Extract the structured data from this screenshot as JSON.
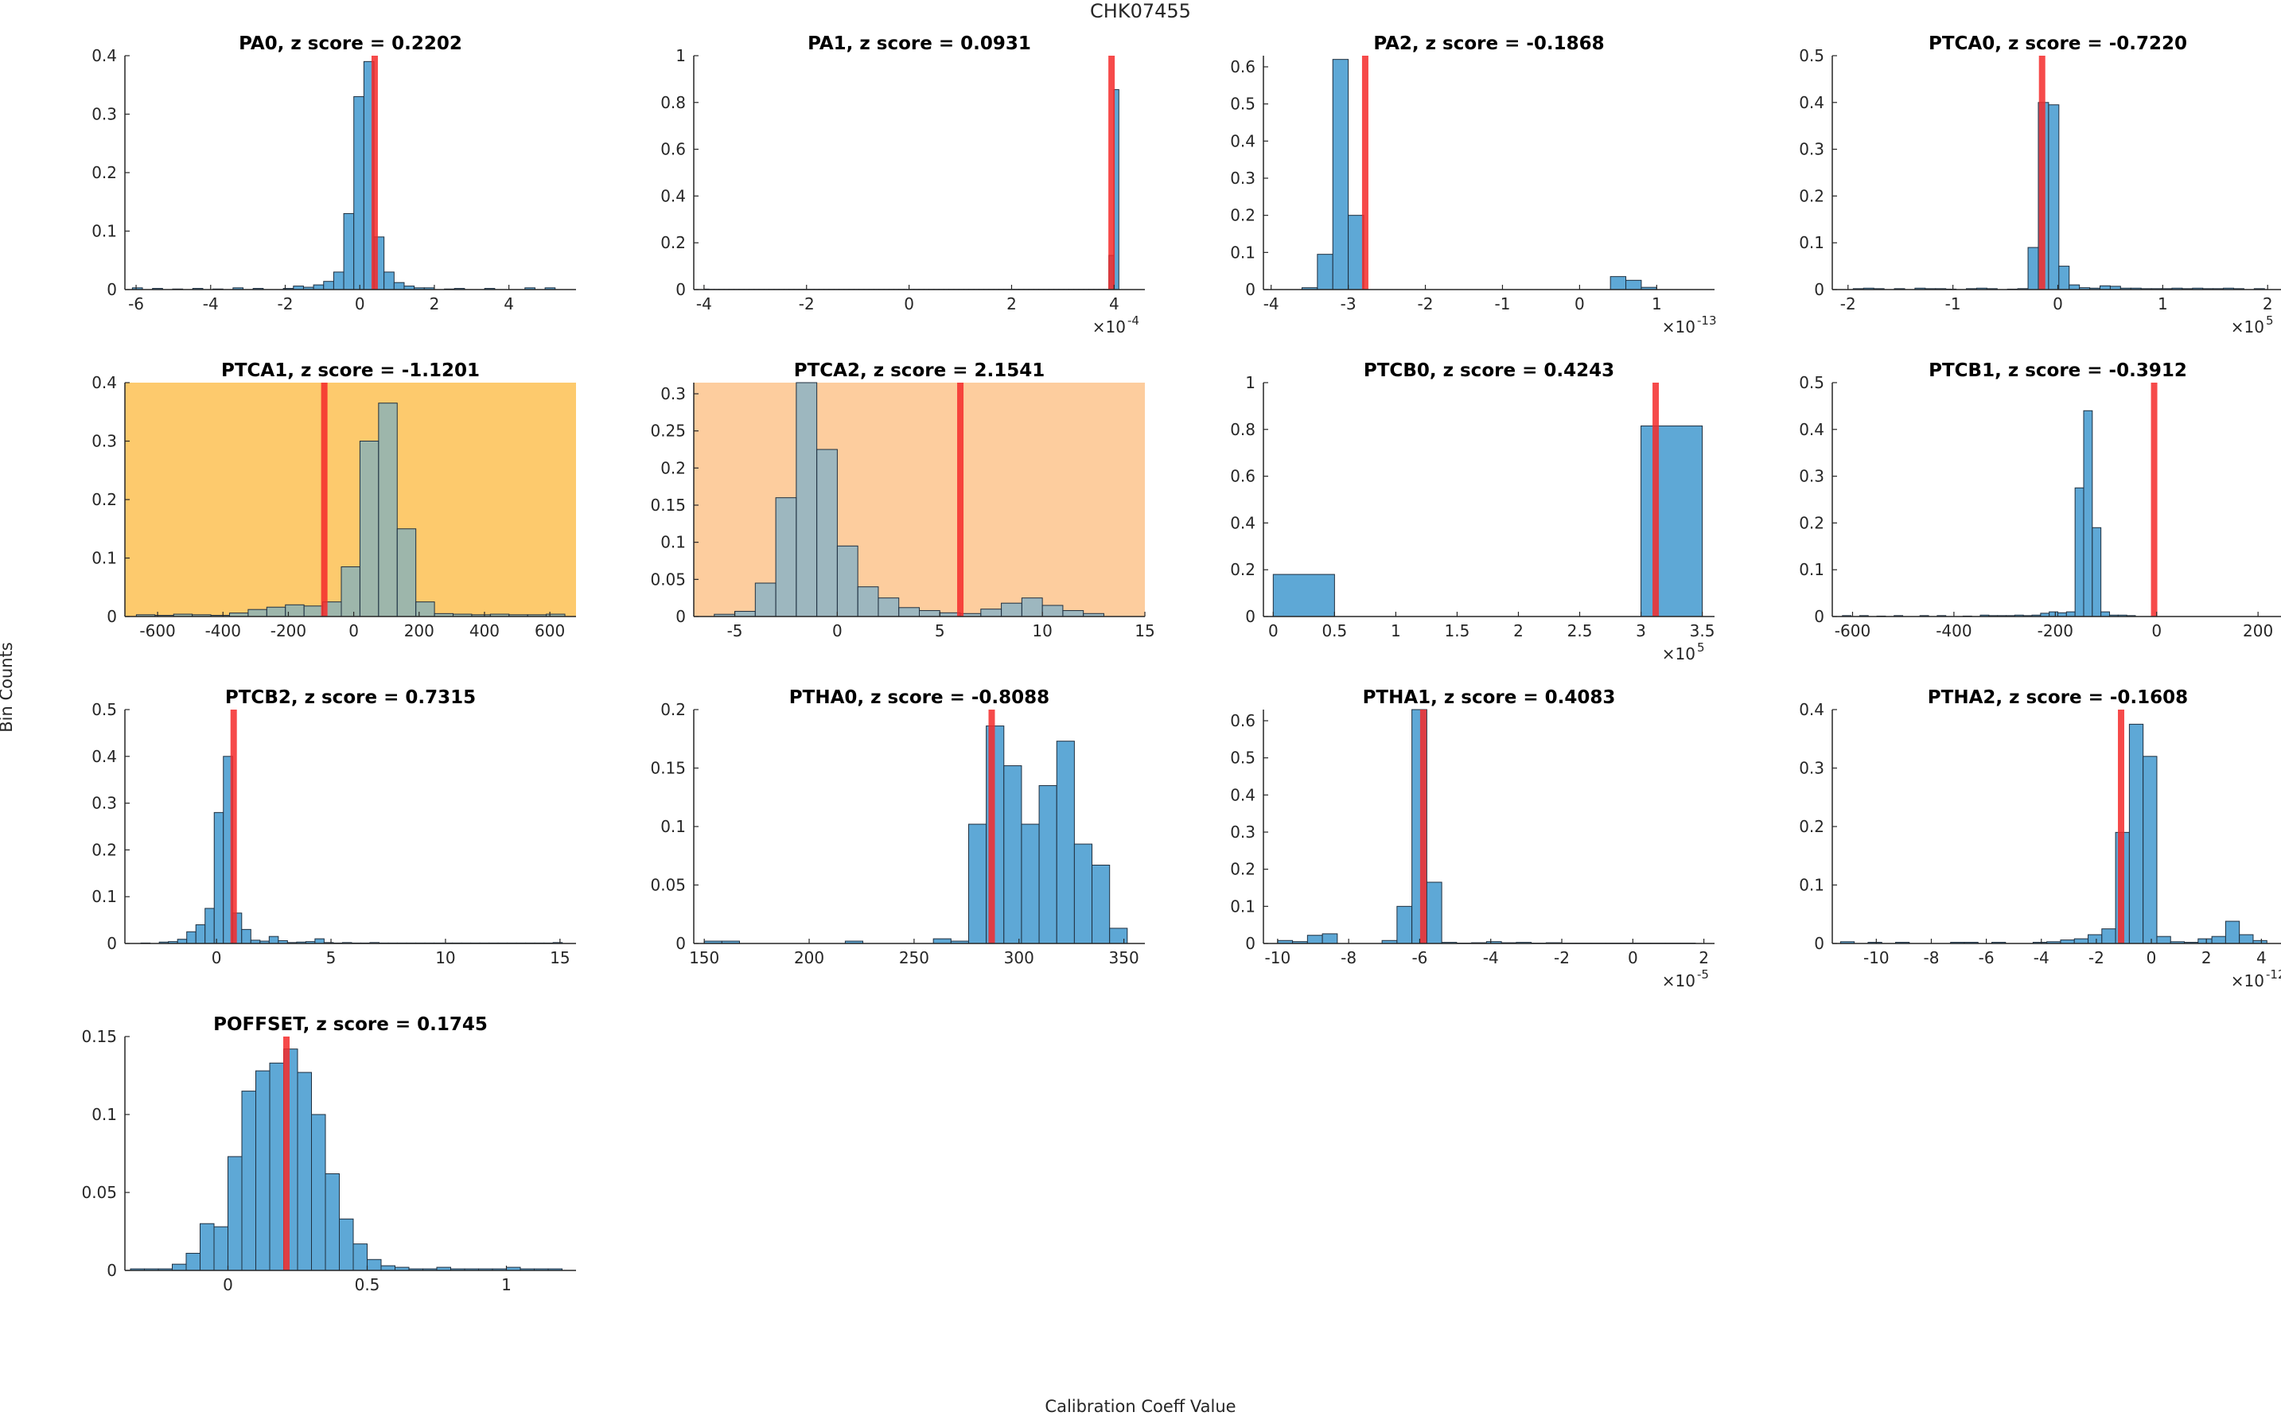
{
  "figure": {
    "title": "CHK07455",
    "xlabel": "Calibration Coeff Value",
    "ylabel": "Bin Counts",
    "colors": {
      "bar_fill": "#5ea8d6",
      "bar_edge": "#1f2f3f",
      "marker": "#f52a2a",
      "axis": "#262626",
      "highlight_dark": "#fdca6d",
      "highlight_light": "#fdcd9e"
    }
  },
  "chart_data": [
    {
      "type": "bar",
      "title": "PA0, z score = 0.2202",
      "xlim": [
        -6.3,
        5.8
      ],
      "ylim": [
        0,
        0.4
      ],
      "xticks": [
        -6,
        -4,
        -2,
        0,
        2,
        4
      ],
      "yticks": [
        0,
        0.1,
        0.2,
        0.3,
        0.4
      ],
      "bin_start": -6.1,
      "bin_width": 0.27,
      "values": [
        0.003,
        0,
        0.002,
        0,
        0.001,
        0,
        0.002,
        0,
        0.001,
        0,
        0.003,
        0,
        0.002,
        0,
        0,
        0.002,
        0.006,
        0.004,
        0.008,
        0.014,
        0.03,
        0.13,
        0.33,
        0.39,
        0.09,
        0.03,
        0.012,
        0.006,
        0.003,
        0.003,
        0,
        0.001,
        0.002,
        0,
        0,
        0.002,
        0,
        0,
        0,
        0.003,
        0,
        0.003
      ],
      "marker": 0.4
    },
    {
      "type": "bar",
      "title": "PA1, z score = 0.0931",
      "xlim": [
        -4.2,
        4.6
      ],
      "ylim": [
        0,
        1
      ],
      "xticks": [
        -4,
        -2,
        0,
        2,
        4
      ],
      "yticks": [
        0,
        0.2,
        0.4,
        0.6,
        0.8,
        1
      ],
      "multiplier": "-4",
      "bin_start": -4.0,
      "bin_width": 0.0975,
      "values": [
        0.002,
        0.001,
        0.001,
        0.001,
        0.001,
        0.001,
        0.001,
        0.001,
        0.001,
        0.001,
        0.001,
        0.001,
        0.001,
        0.001,
        0.001,
        0.001,
        0.001,
        0.001,
        0.001,
        0.001,
        0.001,
        0.001,
        0.001,
        0.001,
        0.001,
        0.001,
        0.001,
        0.001,
        0.001,
        0.001,
        0.001,
        0.001,
        0.001,
        0.001,
        0.001,
        0.001,
        0.001,
        0.001,
        0.001,
        0.001,
        0.001,
        0.001,
        0.001,
        0.001,
        0.001,
        0.001,
        0.001,
        0.001,
        0.001,
        0.001,
        0.001,
        0.001,
        0.001,
        0.001,
        0.001,
        0.001,
        0.001,
        0.001,
        0.001,
        0.001,
        0.001,
        0.001,
        0.001,
        0.001,
        0.001,
        0.001,
        0.001,
        0.001,
        0.001,
        0.001,
        0.001,
        0.001,
        0.001,
        0.001,
        0.001,
        0.001,
        0.001,
        0.001,
        0.001,
        0.001,
        0.001,
        0.146,
        0.855
      ],
      "marker": 3.95
    },
    {
      "type": "bar",
      "title": "PA2, z score = -0.1868",
      "xlim": [
        -4.1,
        1.75
      ],
      "ylim": [
        0,
        0.63
      ],
      "xticks": [
        -4,
        -3,
        -2,
        -1,
        0,
        1
      ],
      "yticks": [
        0,
        0.1,
        0.2,
        0.3,
        0.4,
        0.5,
        0.6
      ],
      "multiplier": "-13",
      "bin_start": -3.6,
      "bin_width": 0.2,
      "values": [
        0.005,
        0.095,
        0.62,
        0.2,
        0,
        0,
        0,
        0,
        0,
        0,
        0,
        0,
        0,
        0,
        0,
        0,
        0,
        0,
        0,
        0,
        0.035,
        0.025,
        0.006
      ],
      "marker": -2.78
    },
    {
      "type": "bar",
      "title": "PTCA0, z score = -0.7220",
      "xlim": [
        -2.15,
        2.15
      ],
      "ylim": [
        0,
        0.5
      ],
      "xticks": [
        -2,
        -1,
        0,
        1,
        2
      ],
      "yticks": [
        0,
        0.1,
        0.2,
        0.3,
        0.4,
        0.5
      ],
      "multiplier": "5",
      "bin_start": -1.95,
      "bin_width": 0.098,
      "values": [
        0.002,
        0.003,
        0.002,
        0,
        0.002,
        0,
        0.003,
        0.002,
        0.002,
        0.001,
        0,
        0.002,
        0.003,
        0.002,
        0,
        0.001,
        0.002,
        0.09,
        0.4,
        0.395,
        0.05,
        0.01,
        0.004,
        0.003,
        0.008,
        0.007,
        0.003,
        0.003,
        0.002,
        0.002,
        0.002,
        0.003,
        0.002,
        0.003,
        0.002,
        0.002,
        0.003,
        0.002,
        0,
        0.002
      ],
      "marker": -0.15
    },
    {
      "type": "bar",
      "title": "PTCA1, z score = -1.1201",
      "xlim": [
        -700,
        680
      ],
      "ylim": [
        0,
        0.4
      ],
      "xticks": [
        -600,
        -400,
        -200,
        0,
        200,
        400,
        600
      ],
      "yticks": [
        0,
        0.1,
        0.2,
        0.3,
        0.4
      ],
      "highlight": "dark",
      "bin_start": -665,
      "bin_width": 57,
      "values": [
        0.003,
        0.002,
        0.004,
        0.003,
        0.002,
        0.006,
        0.012,
        0.016,
        0.02,
        0.018,
        0.025,
        0.085,
        0.3,
        0.365,
        0.15,
        0.025,
        0.005,
        0.004,
        0.003,
        0.004,
        0.003,
        0.003,
        0.004
      ],
      "marker": -90
    },
    {
      "type": "bar",
      "title": "PTCA2, z score = 2.1541",
      "xlim": [
        -7,
        15
      ],
      "ylim": [
        0,
        0.315
      ],
      "xticks": [
        -5,
        0,
        5,
        10,
        15
      ],
      "yticks": [
        0,
        0.05,
        0.1,
        0.15,
        0.2,
        0.25,
        0.3
      ],
      "highlight": "light",
      "bin_start": -6.0,
      "bin_width": 1.0,
      "values": [
        0.003,
        0.007,
        0.045,
        0.16,
        0.315,
        0.225,
        0.095,
        0.04,
        0.025,
        0.012,
        0.008,
        0.005,
        0.004,
        0.01,
        0.018,
        0.025,
        0.015,
        0.008,
        0.004
      ],
      "marker": 6.0
    },
    {
      "type": "bar",
      "title": "PTCB0, z score = 0.4243",
      "xlim": [
        -0.08,
        3.6
      ],
      "ylim": [
        0,
        1
      ],
      "xticks": [
        0,
        0.5,
        1,
        1.5,
        2,
        2.5,
        3,
        3.5
      ],
      "yticks": [
        0,
        0.2,
        0.4,
        0.6,
        0.8,
        1
      ],
      "multiplier": "5",
      "bin_start": 0,
      "bin_width": 0.5,
      "values": [
        0.18,
        0,
        0,
        0,
        0,
        0,
        0.815
      ],
      "marker": 3.12
    },
    {
      "type": "bar",
      "title": "PTCB1, z score = -0.3912",
      "xlim": [
        -640,
        250
      ],
      "ylim": [
        0,
        0.5
      ],
      "xticks": [
        -600,
        -400,
        -200,
        0,
        200
      ],
      "yticks": [
        0,
        0.1,
        0.2,
        0.3,
        0.4,
        0.5
      ],
      "bin_start": -620,
      "bin_width": 17,
      "values": [
        0.002,
        0,
        0.002,
        0,
        0.001,
        0,
        0.002,
        0,
        0,
        0.002,
        0,
        0.002,
        0,
        0,
        0.001,
        0,
        0.003,
        0.002,
        0.002,
        0.002,
        0.003,
        0.002,
        0.003,
        0.007,
        0.01,
        0.008,
        0.01,
        0.275,
        0.44,
        0.19,
        0.01,
        0.003,
        0.003,
        0.002
      ],
      "marker": -5
    },
    {
      "type": "bar",
      "title": "PTCB2, z score = 0.7315",
      "xlim": [
        -4,
        15.7
      ],
      "ylim": [
        0,
        0.5
      ],
      "xticks": [
        0,
        5,
        10,
        15
      ],
      "yticks": [
        0,
        0.1,
        0.2,
        0.3,
        0.4,
        0.5
      ],
      "bin_start": -3.3,
      "bin_width": 0.4,
      "values": [
        0.001,
        0,
        0.003,
        0.004,
        0.009,
        0.025,
        0.04,
        0.075,
        0.28,
        0.4,
        0.065,
        0.03,
        0.007,
        0.005,
        0.015,
        0.006,
        0.002,
        0.003,
        0.004,
        0.01,
        0.002,
        0.001,
        0.002,
        0.001,
        0.001,
        0.002,
        0.001,
        0.001,
        0.001,
        0.001,
        0.001,
        0.001,
        0.001,
        0.001,
        0.001,
        0.001,
        0.001,
        0.001,
        0.001,
        0.001,
        0.001,
        0.001,
        0.001,
        0.001,
        0.001,
        0.002
      ],
      "marker": 0.75
    },
    {
      "type": "bar",
      "title": "PTHA0, z score = -0.8088",
      "xlim": [
        145,
        360
      ],
      "ylim": [
        0,
        0.2
      ],
      "xticks": [
        150,
        200,
        250,
        300,
        350
      ],
      "yticks": [
        0,
        0.05,
        0.1,
        0.15,
        0.2
      ],
      "bin_start": 150,
      "bin_width": 8.4,
      "values": [
        0.002,
        0.002,
        0,
        0,
        0,
        0,
        0,
        0,
        0.002,
        0,
        0,
        0,
        0,
        0.004,
        0.002,
        0.102,
        0.186,
        0.152,
        0.102,
        0.135,
        0.173,
        0.085,
        0.067,
        0.013
      ],
      "marker": 287
    },
    {
      "type": "bar",
      "title": "PTHA1, z score = 0.4083",
      "xlim": [
        -10.4,
        2.3
      ],
      "ylim": [
        0,
        0.63
      ],
      "xticks": [
        -10,
        -8,
        -6,
        -4,
        -2,
        0,
        2
      ],
      "yticks": [
        0,
        0.1,
        0.2,
        0.3,
        0.4,
        0.5,
        0.6
      ],
      "multiplier": "-5",
      "bin_start": -10.0,
      "bin_width": 0.42,
      "values": [
        0.008,
        0.005,
        0.022,
        0.026,
        0,
        0,
        0,
        0.008,
        0.1,
        0.63,
        0.165,
        0.003,
        0.001,
        0.002,
        0.005,
        0.002,
        0.003,
        0.001,
        0.002,
        0.001,
        0.001,
        0.001,
        0.001,
        0.001,
        0.001,
        0.001,
        0.001,
        0.001
      ],
      "marker": -5.9
    },
    {
      "type": "bar",
      "title": "PTHA2, z score = -0.1608",
      "xlim": [
        -11.6,
        4.8
      ],
      "ylim": [
        0,
        0.4
      ],
      "xticks": [
        -10,
        -8,
        -6,
        -4,
        -2,
        0,
        2,
        4
      ],
      "yticks": [
        0,
        0.1,
        0.2,
        0.3,
        0.4
      ],
      "multiplier": "-12",
      "bin_start": -11.3,
      "bin_width": 0.5,
      "values": [
        0.003,
        0,
        0.002,
        0,
        0.002,
        0,
        0,
        0,
        0.002,
        0.002,
        0,
        0.002,
        0,
        0,
        0.002,
        0.003,
        0.006,
        0.008,
        0.015,
        0.025,
        0.19,
        0.375,
        0.32,
        0.012,
        0.003,
        0.002,
        0.008,
        0.012,
        0.038,
        0.015,
        0.005
      ],
      "marker": -1.1
    },
    {
      "type": "bar",
      "title": "POFFSET, z score = 0.1745",
      "xlim": [
        -0.37,
        1.25
      ],
      "ylim": [
        0,
        0.15
      ],
      "xticks": [
        0,
        0.5,
        1
      ],
      "yticks": [
        0,
        0.05,
        0.1,
        0.15
      ],
      "bin_start": -0.35,
      "bin_width": 0.05,
      "values": [
        0.001,
        0.001,
        0.001,
        0.004,
        0.011,
        0.03,
        0.028,
        0.073,
        0.115,
        0.128,
        0.133,
        0.142,
        0.127,
        0.1,
        0.062,
        0.033,
        0.017,
        0.007,
        0.003,
        0.002,
        0.001,
        0.001,
        0.002,
        0.001,
        0.001,
        0.001,
        0.001,
        0.002,
        0.001,
        0.001,
        0.001
      ],
      "marker": 0.21
    }
  ]
}
